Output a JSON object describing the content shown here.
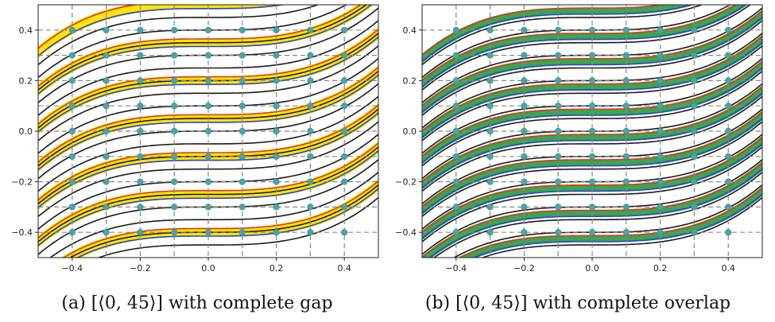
{
  "chart_data": [
    {
      "type": "line",
      "title": "",
      "caption": "(a) [⟨0, 45⟩] with complete gap",
      "xlabel": "",
      "ylabel": "",
      "xlim": [
        -0.5,
        0.5
      ],
      "ylim": [
        -0.5,
        0.5
      ],
      "xticks": [
        -0.4,
        -0.2,
        0.0,
        0.2,
        0.4
      ],
      "yticks": [
        -0.4,
        -0.2,
        0.0,
        0.2,
        0.4
      ],
      "xtick_labels": [
        "−0.4",
        "−0.2",
        "0.0",
        "0.2",
        "0.4"
      ],
      "ytick_labels": [
        "−0.4",
        "−0.2",
        "0.0",
        "0.2",
        "0.4"
      ],
      "grid": {
        "style": "dashed",
        "x": [
          -0.4,
          -0.3,
          -0.2,
          -0.1,
          0.0,
          0.1,
          0.2,
          0.3,
          0.4
        ],
        "y": [
          -0.4,
          -0.3,
          -0.2,
          -0.1,
          0.0,
          0.1,
          0.2,
          0.3,
          0.4
        ]
      },
      "points": {
        "marker": "dot",
        "x": [
          -0.4,
          -0.3,
          -0.2,
          -0.1,
          0.0,
          0.1,
          0.2,
          0.3,
          0.4
        ],
        "y": [
          -0.4,
          -0.3,
          -0.2,
          -0.1,
          0.0,
          0.1,
          0.2,
          0.3,
          0.4
        ]
      },
      "curve": {
        "form": "y = c + 1.5·x³",
        "black_offsets": [
          -0.45,
          -0.4,
          -0.35,
          -0.3,
          -0.25,
          -0.2,
          -0.15,
          -0.1,
          -0.05,
          0.0,
          0.05,
          0.1,
          0.15,
          0.2,
          0.25,
          0.3,
          0.35,
          0.4,
          0.45
        ],
        "band_centers": [
          -0.4,
          -0.25,
          -0.1,
          0.05,
          0.2,
          0.35,
          0.5
        ],
        "band_half_width": 0.015,
        "band_fill": "gap"
      },
      "colors": {
        "black": "#1a1a1a",
        "red": "#e8302a",
        "blue": "#2b3fe0",
        "gap_fill": "#ffe600",
        "overlap_fill": "#3aa84a",
        "grid": "#888888",
        "marker": "#4fa3a3"
      }
    },
    {
      "type": "line",
      "title": "",
      "caption": "(b) [⟨0, 45⟩] with complete overlap",
      "xlabel": "",
      "ylabel": "",
      "xlim": [
        -0.5,
        0.5
      ],
      "ylim": [
        -0.5,
        0.5
      ],
      "xticks": [
        -0.4,
        -0.2,
        0.0,
        0.2,
        0.4
      ],
      "yticks": [
        -0.4,
        -0.2,
        0.0,
        0.2,
        0.4
      ],
      "xtick_labels": [
        "−0.4",
        "−0.2",
        "0.0",
        "0.2",
        "0.4"
      ],
      "ytick_labels": [
        "−0.4",
        "−0.2",
        "0.0",
        "0.2",
        "0.4"
      ],
      "grid": {
        "style": "dashed",
        "x": [
          -0.4,
          -0.3,
          -0.2,
          -0.1,
          0.0,
          0.1,
          0.2,
          0.3,
          0.4
        ],
        "y": [
          -0.4,
          -0.3,
          -0.2,
          -0.1,
          0.0,
          0.1,
          0.2,
          0.3,
          0.4
        ]
      },
      "points": {
        "marker": "dot",
        "x": [
          -0.4,
          -0.3,
          -0.2,
          -0.1,
          0.0,
          0.1,
          0.2,
          0.3,
          0.4
        ],
        "y": [
          -0.4,
          -0.3,
          -0.2,
          -0.1,
          0.0,
          0.1,
          0.2,
          0.3,
          0.4
        ]
      },
      "curve": {
        "form": "y = c + 1.5·x³",
        "black_offsets": [
          -0.45,
          -0.4,
          -0.35,
          -0.3,
          -0.25,
          -0.2,
          -0.15,
          -0.1,
          -0.05,
          0.0,
          0.05,
          0.1,
          0.15,
          0.2,
          0.25,
          0.3,
          0.35,
          0.4,
          0.45
        ],
        "band_centers": [
          -0.425,
          -0.325,
          -0.225,
          -0.125,
          -0.025,
          0.075,
          0.175,
          0.275,
          0.375,
          0.475
        ],
        "band_half_width": 0.012,
        "band_fill": "overlap"
      },
      "colors": {
        "black": "#1a1a1a",
        "red": "#e8302a",
        "blue": "#2b3fe0",
        "gap_fill": "#ffe600",
        "overlap_fill": "#3aa84a",
        "grid": "#888888",
        "marker": "#4fa3a3"
      }
    }
  ]
}
